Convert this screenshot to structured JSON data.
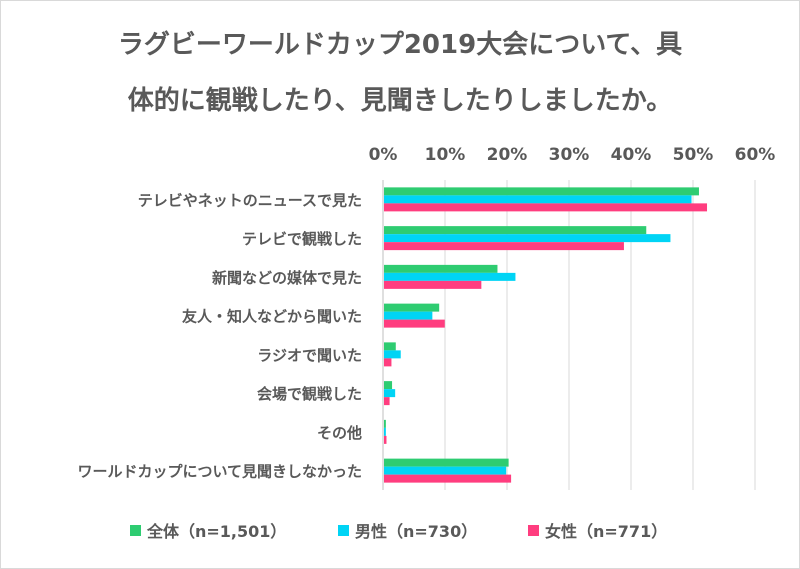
{
  "chart_data": {
    "type": "bar",
    "orientation": "horizontal",
    "title_line1": "ラグビーワールドカップ2019大会について、具",
    "title_line2": "体的に観戦したり、見聞きしたりしましたか。",
    "categories": [
      "テレビやネットのニュースで見た",
      "テレビで観戦した",
      "新聞などの媒体で見た",
      "友人・知人などから聞いた",
      "ラジオで聞いた",
      "会場で観戦した",
      "その他",
      "ワールドカップについて見聞きしなかった"
    ],
    "series": [
      {
        "name": "全体（n=1,501）",
        "color": "#2ecc71",
        "values": [
          50.8,
          42.3,
          18.3,
          8.9,
          1.9,
          1.3,
          0.3,
          20.1
        ]
      },
      {
        "name": "男性（n=730）",
        "color": "#00d4f5",
        "values": [
          49.6,
          46.2,
          21.2,
          7.8,
          2.7,
          1.8,
          0.3,
          19.7
        ]
      },
      {
        "name": "女性（n=771）",
        "color": "#ff3d7f",
        "values": [
          52.1,
          38.7,
          15.7,
          9.8,
          1.2,
          0.9,
          0.4,
          20.5
        ]
      }
    ],
    "x_ticks": [
      "0%",
      "10%",
      "20%",
      "30%",
      "40%",
      "50%",
      "60%"
    ],
    "xlim": [
      0,
      60
    ],
    "x_axis_position": "top",
    "grid": true,
    "legend_position": "bottom"
  }
}
